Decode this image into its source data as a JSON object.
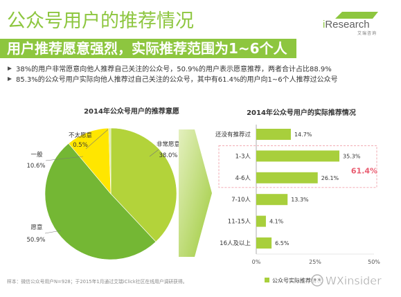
{
  "header": {
    "title": "公众号用户的推荐情况",
    "subtitle": "用户推荐愿意强烈，实际推荐范围为1~6个人",
    "logo": {
      "brand": "iResearch",
      "brand_cn": "艾瑞咨询"
    }
  },
  "bullets": [
    "38%的用户非常愿意向他人推荐自己关注的公众号，50.9%的用户表示愿意推荐，两者合计占比88.9%",
    "85.3%的公众号用户实际向他人推荐过自己关注的公众号，其中有61.4%的用户向1~6个人推荐过公众号"
  ],
  "colors": {
    "brand_green": "#8dc63f",
    "highlight": "#e95c70",
    "arrow_light": "#e4f0bf",
    "arrow_dark": "#9fcb3c"
  },
  "chart_data": [
    {
      "type": "pie",
      "title": "2014年公众号用户的推荐意愿",
      "slices": [
        {
          "label": "非常愿意",
          "value": 38.0,
          "value_label": "38.0%",
          "color": "#b3d33a"
        },
        {
          "label": "愿意",
          "value": 50.9,
          "value_label": "50.9%",
          "color": "#74b734"
        },
        {
          "label": "一般",
          "value": 10.6,
          "value_label": "10.6%",
          "color": "#ffe600"
        },
        {
          "label": "不太愿意",
          "value": 0.5,
          "value_label": "0.5%",
          "color": "#d9e8a6"
        }
      ]
    },
    {
      "type": "bar",
      "orientation": "horizontal",
      "title": "2014年公众号用户的实际推荐情况",
      "categories": [
        "还没有推荐过",
        "1-3人",
        "4-6人",
        "7-10人",
        "11-15人",
        "16人及以上"
      ],
      "series": [
        {
          "name": "公众号实际推荐情况",
          "values": [
            14.7,
            35.3,
            26.1,
            13.3,
            4.1,
            6.5
          ],
          "color": "#a8cf3c"
        }
      ],
      "value_labels": [
        "14.7%",
        "35.3%",
        "26.1%",
        "13.3%",
        "4.1%",
        "6.5%"
      ],
      "xlim": [
        0,
        50
      ],
      "x_ticks": [
        {
          "value": 0,
          "label": "0%"
        },
        {
          "value": 25,
          "label": "25%"
        },
        {
          "value": 50,
          "label": "50%"
        }
      ],
      "grid": false,
      "legend": "bottom",
      "annotation": {
        "text": "61.4%",
        "categories": [
          "1-3人",
          "4-6人"
        ],
        "color": "#e95c70"
      }
    }
  ],
  "footnote": "样本：微信公众号用户N=928；于2015年1月通过艾瑞iClick社区在线用户调研获得。",
  "watermark": {
    "text": "WXinsider"
  }
}
